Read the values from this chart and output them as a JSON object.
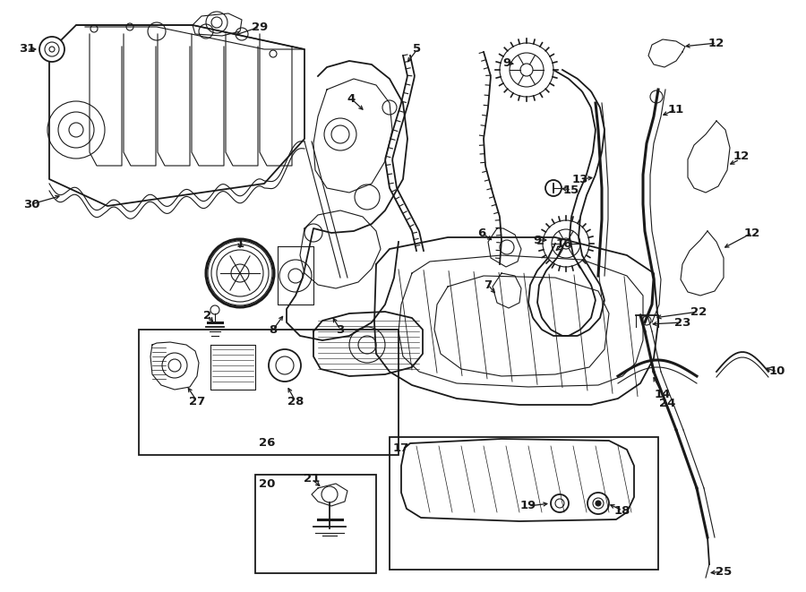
{
  "bg_color": "#ffffff",
  "line_color": "#1a1a1a",
  "lw_thin": 0.8,
  "lw_med": 1.3,
  "lw_thick": 2.2,
  "label_fontsize": 9.5,
  "label_fontweight": "bold"
}
